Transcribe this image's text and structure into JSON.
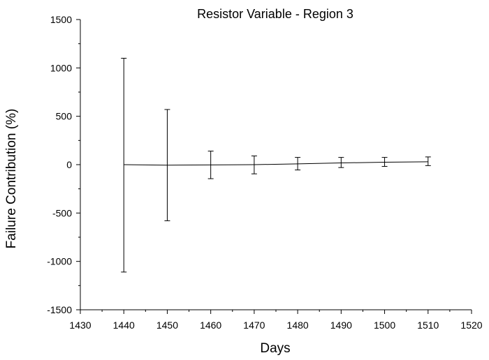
{
  "chart_data": {
    "type": "line",
    "title": "Resistor Variable - Region 3",
    "xlabel": "Days",
    "ylabel": "Failure Contribution (%)",
    "xlim": [
      1430,
      1520
    ],
    "ylim": [
      -1500,
      1500
    ],
    "xticks": [
      1430,
      1440,
      1450,
      1460,
      1470,
      1480,
      1490,
      1500,
      1510,
      1520
    ],
    "yticks": [
      -1500,
      -1000,
      -500,
      0,
      500,
      1000,
      1500
    ],
    "grid": false,
    "series": [
      {
        "x": [
          1440,
          1450,
          1460,
          1470,
          1480,
          1490,
          1500,
          1510
        ],
        "y": [
          0,
          -5,
          -3,
          0,
          8,
          18,
          25,
          30
        ],
        "error_low": [
          -1110,
          -580,
          -145,
          -95,
          -55,
          -30,
          -18,
          -10
        ],
        "error_high": [
          1100,
          570,
          140,
          90,
          75,
          75,
          75,
          80
        ]
      }
    ]
  }
}
